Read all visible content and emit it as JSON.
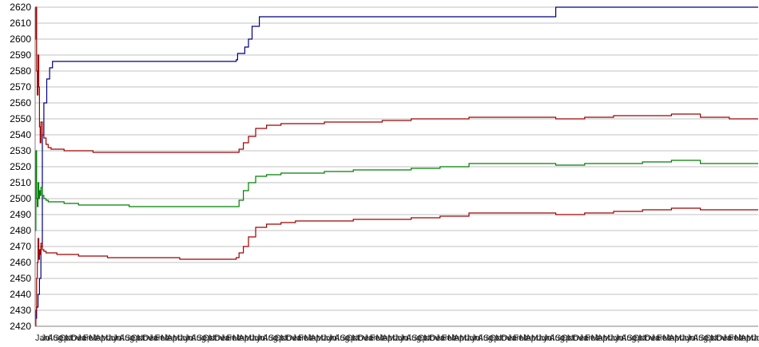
{
  "chart_data": {
    "type": "line",
    "title": "",
    "xlabel": "",
    "ylabel": "",
    "ylim": [
      2420,
      2620
    ],
    "yticks": [
      2420,
      2430,
      2440,
      2450,
      2460,
      2470,
      2480,
      2490,
      2500,
      2510,
      2520,
      2530,
      2540,
      2550,
      2560,
      2570,
      2580,
      2590,
      2600,
      2610,
      2620
    ],
    "grid": true,
    "legend": "none",
    "x_start_label": "Jan",
    "x_tick_labels": [
      "Jan",
      "Jul",
      "Aug",
      "Sep",
      "Oct",
      "Nov",
      "Dec",
      "Jan",
      "Feb",
      "Mar",
      "Apr",
      "May",
      "Jun",
      "Jul",
      "Aug",
      "Sep",
      "Oct",
      "Nov",
      "Dec",
      "Jan",
      "Feb",
      "Mar",
      "Apr",
      "May",
      "Jun",
      "Jul",
      "Aug",
      "Sep",
      "Oct",
      "Nov",
      "Dec",
      "Jan",
      "Feb",
      "Mar",
      "Apr",
      "May",
      "Jun",
      "Jul",
      "Aug",
      "Sep",
      "Oct",
      "Nov",
      "Dec",
      "Jan",
      "Feb",
      "Mar",
      "Apr",
      "May",
      "Jun",
      "Jul",
      "Aug",
      "Sep",
      "Oct",
      "Nov",
      "Dec",
      "Jan",
      "Feb",
      "Mar",
      "Apr",
      "May",
      "Jun",
      "Jul",
      "Aug",
      "Sep",
      "Oct",
      "Nov",
      "Dec",
      "Jan",
      "Feb",
      "Mar",
      "Apr",
      "May",
      "Jun",
      "Jul",
      "Aug",
      "Sep",
      "Oct",
      "Nov",
      "Dec",
      "Jan",
      "Feb",
      "Mar",
      "Apr",
      "May",
      "Jun",
      "Jul",
      "Aug",
      "Sep",
      "Oct",
      "Nov",
      "Dec",
      "Jan",
      "Feb",
      "Mar",
      "Apr",
      "May",
      "Jun",
      "Jul",
      "Aug",
      "Sep",
      "Oct",
      "Nov",
      "Dec",
      "Jan",
      "Feb",
      "Mar",
      "Apr",
      "May",
      "Jun",
      "Jul",
      "Aug",
      "Sep",
      "Oct",
      "Nov",
      "Dec",
      "Jan",
      "Feb",
      "Mar",
      "Apr",
      "May",
      "Jun"
    ],
    "series": [
      {
        "color": "#00007f",
        "x": [
          0,
          2,
          4,
          6,
          8,
          10,
          12,
          16,
          20,
          24,
          28,
          40,
          60,
          100,
          200,
          278,
          280,
          290,
          295,
          300,
          310,
          700,
          720,
          1000
        ],
        "y": [
          2425,
          2432,
          2440,
          2450,
          2470,
          2540,
          2560,
          2575,
          2582,
          2586,
          2586,
          2586,
          2586,
          2586,
          2586,
          2587,
          2591,
          2595,
          2600,
          2608,
          2614,
          2614,
          2620,
          2620
        ]
      },
      {
        "color": "#a00000",
        "x": [
          0,
          1,
          2,
          3,
          4,
          5,
          6,
          7,
          8,
          10,
          12,
          15,
          18,
          22,
          26,
          30,
          40,
          60,
          80,
          100,
          130,
          160,
          200,
          240,
          278,
          282,
          288,
          295,
          305,
          320,
          340,
          360,
          400,
          440,
          480,
          520,
          560,
          600,
          640,
          680,
          720,
          760,
          800,
          840,
          880,
          920,
          960,
          1000
        ],
        "y": [
          2600,
          2620,
          2580,
          2565,
          2590,
          2570,
          2545,
          2535,
          2548,
          2540,
          2538,
          2534,
          2532,
          2531,
          2531,
          2531,
          2530,
          2530,
          2529,
          2529,
          2529,
          2529,
          2529,
          2529,
          2529,
          2531,
          2535,
          2539,
          2544,
          2546,
          2547,
          2547,
          2548,
          2548,
          2549,
          2550,
          2550,
          2551,
          2551,
          2551,
          2550,
          2551,
          2552,
          2552,
          2553,
          2551,
          2550,
          2550
        ]
      },
      {
        "color": "#007f00",
        "x": [
          0,
          1,
          2,
          3,
          4,
          5,
          6,
          7,
          8,
          10,
          12,
          15,
          18,
          22,
          26,
          30,
          40,
          60,
          80,
          100,
          130,
          160,
          200,
          240,
          278,
          282,
          288,
          295,
          305,
          320,
          340,
          360,
          400,
          440,
          480,
          520,
          560,
          600,
          640,
          680,
          720,
          760,
          800,
          840,
          880,
          920,
          960,
          1000
        ],
        "y": [
          2480,
          2530,
          2500,
          2495,
          2510,
          2500,
          2505,
          2502,
          2507,
          2502,
          2500,
          2499,
          2498,
          2498,
          2498,
          2498,
          2497,
          2496,
          2496,
          2496,
          2495,
          2495,
          2495,
          2495,
          2495,
          2499,
          2505,
          2510,
          2514,
          2515,
          2516,
          2516,
          2517,
          2518,
          2518,
          2519,
          2520,
          2522,
          2522,
          2522,
          2521,
          2522,
          2522,
          2523,
          2524,
          2522,
          2522,
          2522
        ]
      },
      {
        "color": "#a00000",
        "x": [
          0,
          1,
          2,
          3,
          4,
          5,
          6,
          7,
          8,
          10,
          12,
          15,
          18,
          22,
          26,
          30,
          40,
          60,
          80,
          100,
          130,
          160,
          200,
          240,
          278,
          282,
          288,
          295,
          305,
          320,
          340,
          360,
          400,
          440,
          480,
          520,
          560,
          600,
          640,
          680,
          720,
          760,
          800,
          840,
          880,
          920,
          960,
          1000
        ],
        "y": [
          2420,
          2430,
          2450,
          2460,
          2475,
          2462,
          2468,
          2465,
          2472,
          2468,
          2467,
          2466,
          2466,
          2466,
          2466,
          2465,
          2465,
          2464,
          2464,
          2463,
          2463,
          2463,
          2462,
          2462,
          2463,
          2466,
          2470,
          2476,
          2482,
          2484,
          2485,
          2486,
          2486,
          2487,
          2487,
          2488,
          2489,
          2491,
          2491,
          2491,
          2490,
          2491,
          2492,
          2493,
          2494,
          2493,
          2493,
          2493
        ]
      }
    ]
  }
}
